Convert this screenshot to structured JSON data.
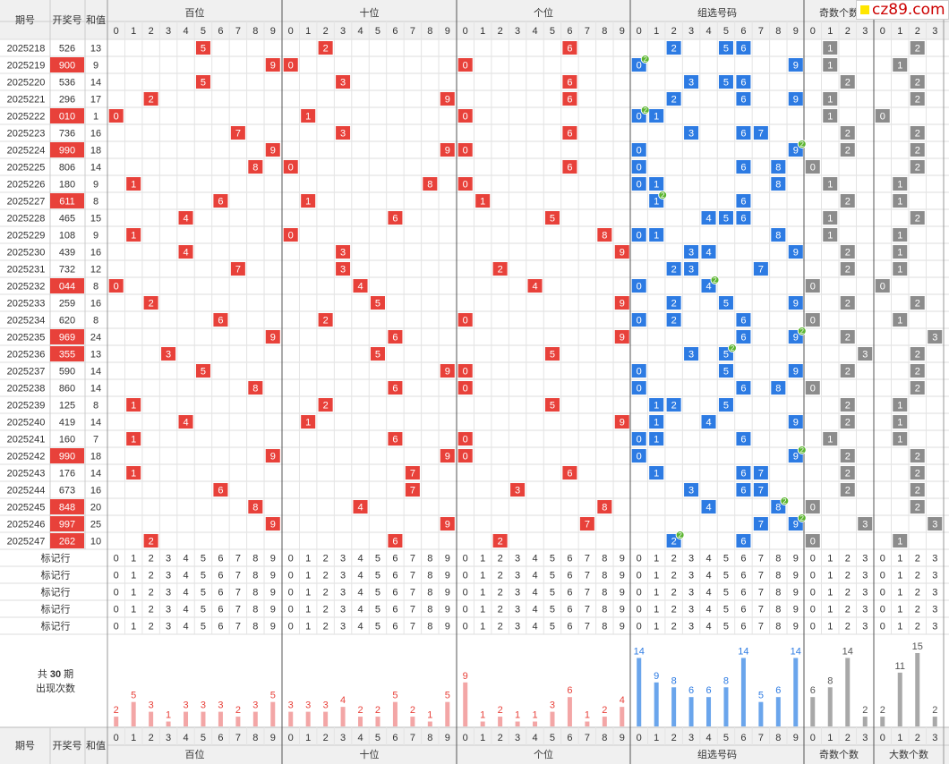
{
  "headers": {
    "period": "期号",
    "draw": "开奖号",
    "sum": "和值",
    "groups": [
      "百位",
      "十位",
      "个位",
      "组选号码",
      "奇数个数",
      "大数个数"
    ],
    "marker_label": "标记行",
    "summary_prefix": "共",
    "summary_count": "30",
    "summary_suffix": "期",
    "summary_line2": "出现次数"
  },
  "logo_text": "cz89.com",
  "colors": {
    "red": "#e8413a",
    "blue": "#2d7be3",
    "gray": "#8c8c8c",
    "bar_red": "#f3a6a6",
    "bar_blue": "#6aa5ec",
    "bar_gray": "#a8a8a8",
    "repeat_badge": "#5cb531"
  },
  "chart_data": {
    "type": "table",
    "rows": [
      {
        "period": "2025218",
        "number": "526",
        "sum": "13",
        "red": false,
        "odd": 1,
        "big": 2
      },
      {
        "period": "2025219",
        "number": "900",
        "sum": "9",
        "red": true,
        "odd": 1,
        "big": 1
      },
      {
        "period": "2025220",
        "number": "536",
        "sum": "14",
        "red": false,
        "odd": 2,
        "big": 2
      },
      {
        "period": "2025221",
        "number": "296",
        "sum": "17",
        "red": false,
        "odd": 1,
        "big": 2
      },
      {
        "period": "2025222",
        "number": "010",
        "sum": "1",
        "red": true,
        "odd": 1,
        "big": 0
      },
      {
        "period": "2025223",
        "number": "736",
        "sum": "16",
        "red": false,
        "odd": 2,
        "big": 2
      },
      {
        "period": "2025224",
        "number": "990",
        "sum": "18",
        "red": true,
        "odd": 2,
        "big": 2
      },
      {
        "period": "2025225",
        "number": "806",
        "sum": "14",
        "red": false,
        "odd": 0,
        "big": 2
      },
      {
        "period": "2025226",
        "number": "180",
        "sum": "9",
        "red": false,
        "odd": 1,
        "big": 1
      },
      {
        "period": "2025227",
        "number": "611",
        "sum": "8",
        "red": true,
        "odd": 2,
        "big": 1
      },
      {
        "period": "2025228",
        "number": "465",
        "sum": "15",
        "red": false,
        "odd": 1,
        "big": 2
      },
      {
        "period": "2025229",
        "number": "108",
        "sum": "9",
        "red": false,
        "odd": 1,
        "big": 1
      },
      {
        "period": "2025230",
        "number": "439",
        "sum": "16",
        "red": false,
        "odd": 2,
        "big": 1
      },
      {
        "period": "2025231",
        "number": "732",
        "sum": "12",
        "red": false,
        "odd": 2,
        "big": 1
      },
      {
        "period": "2025232",
        "number": "044",
        "sum": "8",
        "red": true,
        "odd": 0,
        "big": 0
      },
      {
        "period": "2025233",
        "number": "259",
        "sum": "16",
        "red": false,
        "odd": 2,
        "big": 2
      },
      {
        "period": "2025234",
        "number": "620",
        "sum": "8",
        "red": false,
        "odd": 0,
        "big": 1
      },
      {
        "period": "2025235",
        "number": "969",
        "sum": "24",
        "red": true,
        "odd": 2,
        "big": 3
      },
      {
        "period": "2025236",
        "number": "355",
        "sum": "13",
        "red": true,
        "odd": 3,
        "big": 2
      },
      {
        "period": "2025237",
        "number": "590",
        "sum": "14",
        "red": false,
        "odd": 2,
        "big": 2
      },
      {
        "period": "2025238",
        "number": "860",
        "sum": "14",
        "red": false,
        "odd": 0,
        "big": 2
      },
      {
        "period": "2025239",
        "number": "125",
        "sum": "8",
        "red": false,
        "odd": 2,
        "big": 1
      },
      {
        "period": "2025240",
        "number": "419",
        "sum": "14",
        "red": false,
        "odd": 2,
        "big": 1
      },
      {
        "period": "2025241",
        "number": "160",
        "sum": "7",
        "red": false,
        "odd": 1,
        "big": 1
      },
      {
        "period": "2025242",
        "number": "990",
        "sum": "18",
        "red": true,
        "odd": 2,
        "big": 2
      },
      {
        "period": "2025243",
        "number": "176",
        "sum": "14",
        "red": false,
        "odd": 2,
        "big": 2
      },
      {
        "period": "2025244",
        "number": "673",
        "sum": "16",
        "red": false,
        "odd": 2,
        "big": 2
      },
      {
        "period": "2025245",
        "number": "848",
        "sum": "20",
        "red": true,
        "odd": 0,
        "big": 2
      },
      {
        "period": "2025246",
        "number": "997",
        "sum": "25",
        "red": true,
        "odd": 3,
        "big": 3
      },
      {
        "period": "2025247",
        "number": "262",
        "sum": "10",
        "red": true,
        "odd": 0,
        "big": 1
      }
    ],
    "counts": {
      "hundreds": [
        2,
        5,
        3,
        1,
        3,
        3,
        3,
        2,
        3,
        5
      ],
      "tens": [
        3,
        3,
        3,
        4,
        2,
        2,
        5,
        2,
        1,
        5
      ],
      "units": [
        9,
        1,
        2,
        1,
        1,
        3,
        6,
        1,
        2,
        4
      ],
      "group": [
        14,
        9,
        8,
        6,
        6,
        8,
        14,
        5,
        6,
        14
      ],
      "odd": [
        6,
        8,
        14,
        2
      ],
      "big": [
        2,
        11,
        15,
        2
      ]
    },
    "marker_rows": 5,
    "digits": [
      "0",
      "1",
      "2",
      "3",
      "4",
      "5",
      "6",
      "7",
      "8",
      "9"
    ],
    "small_digits": [
      "0",
      "1",
      "2",
      "3"
    ]
  }
}
